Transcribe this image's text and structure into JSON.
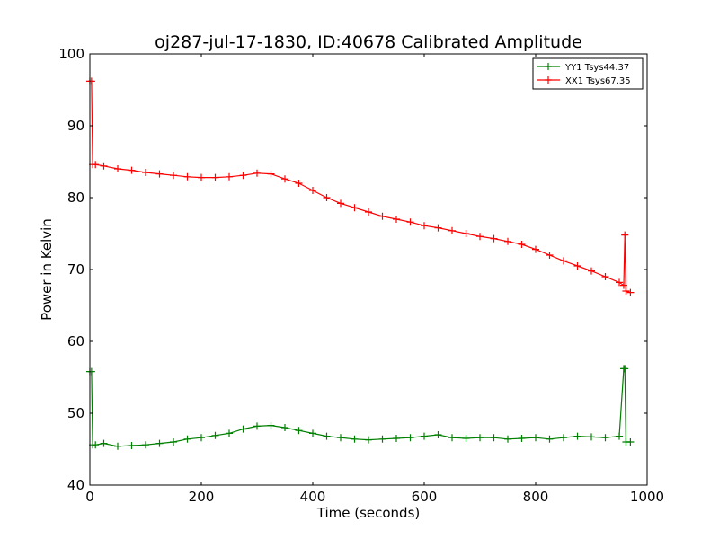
{
  "chart_data": {
    "type": "line",
    "title": "oj287-jul-17-1830, ID:40678 Calibrated Amplitude",
    "xlabel": "Time (seconds)",
    "ylabel": "Power in Kelvin",
    "xlim": [
      0,
      1000
    ],
    "ylim": [
      40,
      100
    ],
    "xticks": [
      "0",
      "200",
      "400",
      "600",
      "800",
      "1000"
    ],
    "yticks": [
      "40",
      "50",
      "60",
      "70",
      "80",
      "90",
      "100"
    ],
    "grid": false,
    "legend_position": "top-right",
    "marker": "+",
    "series": [
      {
        "name": "YY1 Tsys44.37",
        "color": "#008000",
        "x": [
          0,
          3,
          5,
          10,
          25,
          50,
          75,
          100,
          125,
          150,
          175,
          200,
          225,
          250,
          275,
          300,
          325,
          350,
          375,
          400,
          425,
          450,
          475,
          500,
          525,
          550,
          575,
          600,
          625,
          650,
          675,
          700,
          725,
          750,
          775,
          800,
          825,
          850,
          875,
          900,
          925,
          950,
          958,
          960,
          962,
          970
        ],
        "y": [
          55.8,
          55.8,
          45.6,
          45.6,
          45.8,
          45.4,
          45.5,
          45.6,
          45.8,
          46.0,
          46.4,
          46.6,
          46.9,
          47.2,
          47.8,
          48.2,
          48.3,
          48.0,
          47.6,
          47.2,
          46.8,
          46.6,
          46.4,
          46.3,
          46.4,
          46.5,
          46.6,
          46.8,
          47.0,
          46.6,
          46.5,
          46.6,
          46.6,
          46.4,
          46.5,
          46.6,
          46.4,
          46.6,
          46.8,
          46.7,
          46.6,
          46.8,
          56.2,
          56.2,
          46.0,
          46.0
        ]
      },
      {
        "name": "XX1 Tsys67.35",
        "color": "#ff0000",
        "x": [
          0,
          3,
          5,
          10,
          25,
          50,
          75,
          100,
          125,
          150,
          175,
          200,
          225,
          250,
          275,
          300,
          325,
          350,
          375,
          400,
          425,
          450,
          475,
          500,
          525,
          550,
          575,
          600,
          625,
          650,
          675,
          700,
          725,
          750,
          775,
          800,
          825,
          850,
          875,
          900,
          925,
          950,
          958,
          960,
          962,
          970
        ],
        "y": [
          96.2,
          96.2,
          84.6,
          84.6,
          84.4,
          84.0,
          83.8,
          83.5,
          83.3,
          83.1,
          82.9,
          82.8,
          82.8,
          82.9,
          83.1,
          83.4,
          83.3,
          82.6,
          82.0,
          81.0,
          80.0,
          79.2,
          78.6,
          78.0,
          77.4,
          77.0,
          76.6,
          76.1,
          75.8,
          75.4,
          75.0,
          74.6,
          74.3,
          73.9,
          73.5,
          72.8,
          72.0,
          71.2,
          70.5,
          69.8,
          69.0,
          68.2,
          67.8,
          74.8,
          67.0,
          66.8
        ]
      }
    ]
  }
}
